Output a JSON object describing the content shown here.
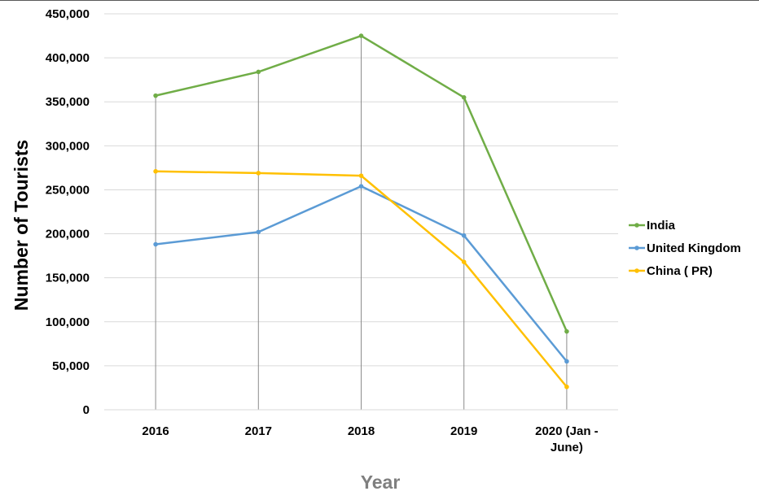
{
  "chart_data": {
    "type": "line",
    "title": "",
    "xlabel": "Year",
    "ylabel": "Number of Tourists",
    "categories": [
      "2016",
      "2017",
      "2018",
      "2019",
      "2020 (Jan - June)"
    ],
    "category_lines": [
      [
        "2016"
      ],
      [
        "2017"
      ],
      [
        "2018"
      ],
      [
        "2019"
      ],
      [
        "2020 (Jan -",
        "June)"
      ]
    ],
    "ylim": [
      0,
      450000
    ],
    "yticks": [
      0,
      50000,
      100000,
      150000,
      200000,
      250000,
      300000,
      350000,
      400000,
      450000
    ],
    "ytick_labels": [
      "0",
      "50,000",
      "100,000",
      "150,000",
      "200,000",
      "250,000",
      "300,000",
      "350,000",
      "400,000",
      "450,000"
    ],
    "grid": "horizontal",
    "drop_lines": true,
    "legend_position": "right",
    "series": [
      {
        "name": "India",
        "color": "#70ad47",
        "values": [
          357000,
          384000,
          425000,
          355000,
          89000
        ]
      },
      {
        "name": "United Kingdom",
        "color": "#5b9bd5",
        "values": [
          188000,
          202000,
          254000,
          198000,
          55000
        ]
      },
      {
        "name": "China ( PR)",
        "color": "#ffc000",
        "values": [
          271000,
          269000,
          266000,
          168000,
          26000
        ]
      }
    ]
  }
}
